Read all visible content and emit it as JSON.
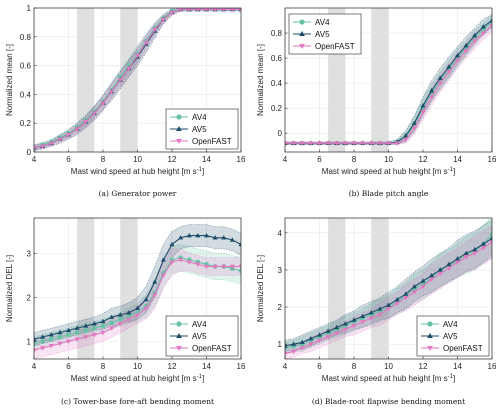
{
  "colors": {
    "AV4": "#66c2a5",
    "AV5": "#1f4e6b",
    "OpenFAST": "#e377c2",
    "shade": "#d9d9d9",
    "grid": "#e6e6e6"
  },
  "chart_data": [
    {
      "id": "a",
      "type": "line",
      "caption": "(a) Generator power",
      "xlabel": "Mast wind speed at hub height [m s",
      "xlabel_sup": "-1",
      "xlabel_end": "]",
      "ylabel": "Normalized mean [-]",
      "xlim": [
        4,
        16
      ],
      "ylim": [
        0,
        1
      ],
      "xticks": [
        "4",
        "6",
        "8",
        "10",
        "12",
        "14",
        "16"
      ],
      "xtick_values": [
        4,
        6,
        8,
        10,
        12,
        14,
        16
      ],
      "yticks": [
        "0",
        "0.2",
        "0.4",
        "0.6",
        "0.8",
        "1"
      ],
      "ytick_values": [
        0,
        0.2,
        0.4,
        0.6,
        0.8,
        1
      ],
      "grid": true,
      "legend_position": "bottom-right",
      "shaded_x_ranges": [
        [
          6.5,
          7.5
        ],
        [
          9,
          10
        ]
      ],
      "x": [
        4,
        4.5,
        5,
        5.5,
        6,
        6.5,
        7,
        7.5,
        8,
        8.5,
        9,
        9.5,
        10,
        10.5,
        11,
        11.5,
        12,
        12.5,
        13,
        13.5,
        14,
        14.5,
        15,
        15.5,
        16
      ],
      "series": [
        {
          "name": "AV4",
          "values": [
            0.03,
            0.05,
            0.07,
            0.1,
            0.13,
            0.17,
            0.22,
            0.28,
            0.35,
            0.43,
            0.52,
            0.6,
            0.68,
            0.77,
            0.86,
            0.93,
            0.98,
            0.99,
            0.99,
            0.99,
            0.99,
            0.99,
            0.99,
            0.99,
            0.99
          ],
          "band": [
            0.02,
            0.02,
            0.02,
            0.02,
            0.03,
            0.03,
            0.04,
            0.04,
            0.05,
            0.05,
            0.05,
            0.05,
            0.06,
            0.05,
            0.04,
            0.03,
            0.02,
            0.01,
            0.01,
            0.01,
            0.01,
            0.01,
            0.01,
            0.01,
            0.01
          ]
        },
        {
          "name": "AV5",
          "values": [
            0.03,
            0.04,
            0.06,
            0.09,
            0.12,
            0.16,
            0.21,
            0.27,
            0.34,
            0.42,
            0.5,
            0.58,
            0.66,
            0.75,
            0.84,
            0.92,
            0.97,
            0.99,
            0.99,
            0.99,
            0.99,
            0.99,
            0.99,
            0.99,
            0.99
          ],
          "band": [
            0.02,
            0.02,
            0.02,
            0.03,
            0.03,
            0.04,
            0.04,
            0.05,
            0.05,
            0.06,
            0.06,
            0.06,
            0.06,
            0.06,
            0.05,
            0.03,
            0.02,
            0.01,
            0.01,
            0.01,
            0.01,
            0.01,
            0.01,
            0.01,
            0.01
          ]
        },
        {
          "name": "OpenFAST",
          "values": [
            0.03,
            0.04,
            0.06,
            0.09,
            0.12,
            0.16,
            0.21,
            0.27,
            0.34,
            0.42,
            0.5,
            0.58,
            0.67,
            0.76,
            0.85,
            0.92,
            0.97,
            0.99,
            0.99,
            0.99,
            0.99,
            0.99,
            0.99,
            0.99,
            0.99
          ],
          "band": [
            0.02,
            0.02,
            0.02,
            0.02,
            0.03,
            0.03,
            0.04,
            0.04,
            0.05,
            0.05,
            0.05,
            0.05,
            0.05,
            0.05,
            0.04,
            0.03,
            0.02,
            0.01,
            0.01,
            0.01,
            0.01,
            0.01,
            0.01,
            0.01,
            0.01
          ]
        }
      ]
    },
    {
      "id": "b",
      "type": "line",
      "caption": "(b) Blade pitch angle",
      "xlabel": "Mast wind speed at hub height [m s",
      "xlabel_sup": "-1",
      "xlabel_end": "]",
      "ylabel": "Normalized mean [-]",
      "xlim": [
        4,
        16
      ],
      "ylim": [
        -0.15,
        1
      ],
      "xticks": [
        "4",
        "6",
        "8",
        "10",
        "12",
        "14",
        "16"
      ],
      "xtick_values": [
        4,
        6,
        8,
        10,
        12,
        14,
        16
      ],
      "yticks": [
        "0",
        "0.2",
        "0.4",
        "0.6",
        "0.8"
      ],
      "ytick_values": [
        0,
        0.2,
        0.4,
        0.6,
        0.8
      ],
      "grid": true,
      "legend_position": "top-left",
      "shaded_x_ranges": [
        [
          6.5,
          7.5
        ],
        [
          9,
          10
        ]
      ],
      "x": [
        4,
        4.5,
        5,
        5.5,
        6,
        6.5,
        7,
        7.5,
        8,
        8.5,
        9,
        9.5,
        10,
        10.5,
        11,
        11.5,
        12,
        12.5,
        13,
        13.5,
        14,
        14.5,
        15,
        15.5,
        16
      ],
      "series": [
        {
          "name": "AV4",
          "values": [
            -0.08,
            -0.08,
            -0.08,
            -0.08,
            -0.08,
            -0.08,
            -0.08,
            -0.08,
            -0.08,
            -0.08,
            -0.08,
            -0.08,
            -0.08,
            -0.07,
            -0.03,
            0.07,
            0.2,
            0.32,
            0.42,
            0.51,
            0.6,
            0.68,
            0.76,
            0.83,
            0.89
          ],
          "band": [
            0.01,
            0.01,
            0.01,
            0.01,
            0.01,
            0.01,
            0.01,
            0.01,
            0.01,
            0.01,
            0.01,
            0.01,
            0.01,
            0.02,
            0.04,
            0.06,
            0.07,
            0.07,
            0.07,
            0.07,
            0.07,
            0.06,
            0.06,
            0.05,
            0.05
          ]
        },
        {
          "name": "AV5",
          "values": [
            -0.08,
            -0.08,
            -0.08,
            -0.08,
            -0.08,
            -0.08,
            -0.08,
            -0.08,
            -0.08,
            -0.08,
            -0.08,
            -0.08,
            -0.08,
            -0.07,
            -0.02,
            0.08,
            0.22,
            0.34,
            0.44,
            0.53,
            0.62,
            0.7,
            0.78,
            0.85,
            0.9
          ],
          "band": [
            0.01,
            0.01,
            0.01,
            0.01,
            0.01,
            0.01,
            0.01,
            0.01,
            0.01,
            0.01,
            0.01,
            0.01,
            0.01,
            0.02,
            0.04,
            0.06,
            0.07,
            0.08,
            0.08,
            0.08,
            0.07,
            0.07,
            0.06,
            0.06,
            0.05
          ]
        },
        {
          "name": "OpenFAST",
          "values": [
            -0.08,
            -0.08,
            -0.08,
            -0.08,
            -0.08,
            -0.08,
            -0.08,
            -0.08,
            -0.08,
            -0.08,
            -0.08,
            -0.08,
            -0.08,
            -0.08,
            -0.05,
            0.04,
            0.17,
            0.29,
            0.4,
            0.49,
            0.58,
            0.66,
            0.74,
            0.8,
            0.86
          ],
          "band": [
            0.01,
            0.01,
            0.01,
            0.01,
            0.01,
            0.01,
            0.01,
            0.01,
            0.01,
            0.01,
            0.01,
            0.01,
            0.01,
            0.01,
            0.03,
            0.05,
            0.06,
            0.07,
            0.07,
            0.07,
            0.06,
            0.06,
            0.06,
            0.05,
            0.05
          ]
        }
      ]
    },
    {
      "id": "c",
      "type": "line",
      "caption": "(c) Tower-base fore-aft bending moment",
      "xlabel": "Mast wind speed at hub height [m s",
      "xlabel_sup": "-1",
      "xlabel_end": "]",
      "ylabel": "Normalized DEL [-]",
      "xlim": [
        4,
        16
      ],
      "ylim": [
        0.6,
        3.8
      ],
      "xticks": [
        "4",
        "6",
        "8",
        "10",
        "12",
        "14",
        "16"
      ],
      "xtick_values": [
        4,
        6,
        8,
        10,
        12,
        14,
        16
      ],
      "yticks": [
        "1",
        "2",
        "3"
      ],
      "ytick_values": [
        1,
        2,
        3
      ],
      "grid": true,
      "legend_position": "bottom-right",
      "shaded_x_ranges": [
        [
          6.5,
          7.5
        ],
        [
          9,
          10
        ]
      ],
      "x": [
        4,
        4.5,
        5,
        5.5,
        6,
        6.5,
        7,
        7.5,
        8,
        8.5,
        9,
        9.5,
        10,
        10.5,
        11,
        11.5,
        12,
        12.5,
        13,
        13.5,
        14,
        14.5,
        15,
        15.5,
        16
      ],
      "series": [
        {
          "name": "AV4",
          "values": [
            0.95,
            1.0,
            1.05,
            1.1,
            1.15,
            1.2,
            1.25,
            1.3,
            1.35,
            1.42,
            1.5,
            1.58,
            1.65,
            1.8,
            2.1,
            2.55,
            2.85,
            2.9,
            2.85,
            2.8,
            2.75,
            2.7,
            2.7,
            2.65,
            2.6
          ],
          "band": [
            0.15,
            0.15,
            0.15,
            0.15,
            0.15,
            0.15,
            0.15,
            0.15,
            0.15,
            0.15,
            0.15,
            0.18,
            0.2,
            0.25,
            0.3,
            0.3,
            0.3,
            0.3,
            0.3,
            0.3,
            0.3,
            0.3,
            0.3,
            0.3,
            0.3
          ]
        },
        {
          "name": "AV5",
          "values": [
            1.05,
            1.1,
            1.15,
            1.2,
            1.25,
            1.3,
            1.35,
            1.4,
            1.45,
            1.55,
            1.6,
            1.65,
            1.75,
            1.95,
            2.35,
            2.85,
            3.2,
            3.35,
            3.4,
            3.4,
            3.4,
            3.35,
            3.35,
            3.3,
            3.2
          ],
          "band": [
            0.15,
            0.15,
            0.15,
            0.15,
            0.15,
            0.15,
            0.15,
            0.15,
            0.18,
            0.2,
            0.2,
            0.22,
            0.25,
            0.3,
            0.35,
            0.35,
            0.3,
            0.25,
            0.25,
            0.25,
            0.25,
            0.25,
            0.25,
            0.25,
            0.25
          ]
        },
        {
          "name": "OpenFAST",
          "values": [
            0.8,
            0.85,
            0.9,
            0.95,
            1.0,
            1.05,
            1.1,
            1.15,
            1.2,
            1.3,
            1.4,
            1.5,
            1.6,
            1.75,
            2.05,
            2.5,
            2.8,
            2.85,
            2.8,
            2.75,
            2.7,
            2.7,
            2.7,
            2.7,
            2.7
          ],
          "band": [
            0.2,
            0.2,
            0.2,
            0.2,
            0.2,
            0.2,
            0.2,
            0.2,
            0.2,
            0.2,
            0.2,
            0.2,
            0.2,
            0.25,
            0.3,
            0.3,
            0.3,
            0.25,
            0.2,
            0.2,
            0.2,
            0.2,
            0.2,
            0.2,
            0.2
          ]
        }
      ]
    },
    {
      "id": "d",
      "type": "line",
      "caption": "(d) Blade-root flapwise bending moment",
      "xlabel": "Mast wind speed at hub height [m s",
      "xlabel_sup": "-1",
      "xlabel_end": "]",
      "ylabel": "Normalized DEL [-]",
      "xlim": [
        4,
        16
      ],
      "ylim": [
        0.6,
        4.4
      ],
      "xticks": [
        "4",
        "6",
        "8",
        "10",
        "12",
        "14",
        "16"
      ],
      "xtick_values": [
        4,
        6,
        8,
        10,
        12,
        14,
        16
      ],
      "yticks": [
        "1",
        "2",
        "3",
        "4"
      ],
      "ytick_values": [
        1,
        2,
        3,
        4
      ],
      "grid": true,
      "legend_position": "bottom-right",
      "shaded_x_ranges": [
        [
          6.5,
          7.5
        ],
        [
          9,
          10
        ]
      ],
      "x": [
        4,
        4.5,
        5,
        5.5,
        6,
        6.5,
        7,
        7.5,
        8,
        8.5,
        9,
        9.5,
        10,
        10.5,
        11,
        11.5,
        12,
        12.5,
        13,
        13.5,
        14,
        14.5,
        15,
        15.5,
        16
      ],
      "series": [
        {
          "name": "AV4",
          "values": [
            0.9,
            0.95,
            1.0,
            1.1,
            1.2,
            1.3,
            1.4,
            1.5,
            1.6,
            1.7,
            1.8,
            1.9,
            2.0,
            2.15,
            2.3,
            2.5,
            2.6,
            2.8,
            3.0,
            3.1,
            3.25,
            3.4,
            3.5,
            3.7,
            3.95
          ],
          "band": [
            0.15,
            0.15,
            0.2,
            0.2,
            0.2,
            0.2,
            0.2,
            0.25,
            0.25,
            0.25,
            0.3,
            0.3,
            0.3,
            0.35,
            0.35,
            0.4,
            0.4,
            0.4,
            0.45,
            0.45,
            0.45,
            0.5,
            0.5,
            0.5,
            0.5
          ]
        },
        {
          "name": "AV5",
          "values": [
            0.95,
            1.0,
            1.05,
            1.15,
            1.25,
            1.35,
            1.45,
            1.55,
            1.65,
            1.75,
            1.85,
            1.95,
            2.05,
            2.2,
            2.35,
            2.55,
            2.7,
            2.85,
            3.0,
            3.15,
            3.3,
            3.45,
            3.55,
            3.7,
            3.85
          ],
          "band": [
            0.15,
            0.15,
            0.2,
            0.2,
            0.2,
            0.2,
            0.2,
            0.25,
            0.25,
            0.3,
            0.3,
            0.3,
            0.35,
            0.35,
            0.4,
            0.4,
            0.4,
            0.45,
            0.45,
            0.45,
            0.5,
            0.5,
            0.5,
            0.5,
            0.5
          ]
        },
        {
          "name": "OpenFAST",
          "values": [
            0.75,
            0.8,
            0.9,
            1.0,
            1.1,
            1.2,
            1.3,
            1.4,
            1.5,
            1.6,
            1.7,
            1.8,
            1.95,
            2.1,
            2.25,
            2.4,
            2.55,
            2.75,
            2.9,
            3.05,
            3.2,
            3.35,
            3.45,
            3.6,
            3.75
          ],
          "band": [
            0.15,
            0.15,
            0.15,
            0.2,
            0.2,
            0.2,
            0.2,
            0.2,
            0.25,
            0.25,
            0.25,
            0.3,
            0.3,
            0.3,
            0.35,
            0.35,
            0.35,
            0.4,
            0.4,
            0.4,
            0.4,
            0.4,
            0.45,
            0.45,
            0.45
          ]
        }
      ]
    }
  ]
}
